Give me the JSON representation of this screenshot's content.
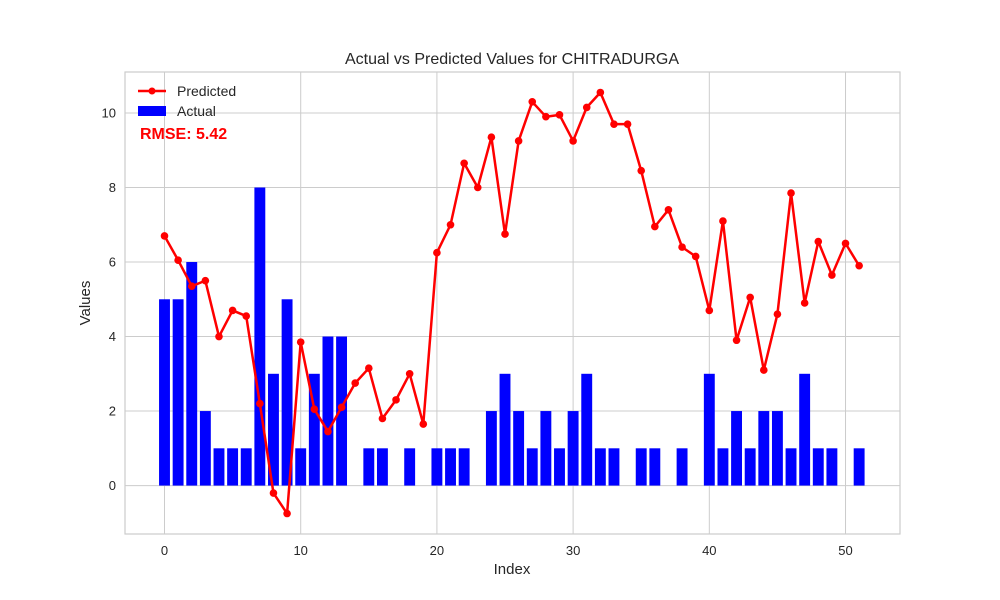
{
  "chart_data": {
    "type": "bar+line",
    "title": "Actual vs Predicted Values for CHITRADURGA",
    "xlabel": "Index",
    "ylabel": "Values",
    "xlim": [
      -2.9,
      54
    ],
    "ylim": [
      -1.3,
      11.1
    ],
    "xticks": [
      0,
      10,
      20,
      30,
      40,
      50
    ],
    "yticks": [
      0,
      2,
      4,
      6,
      8,
      10
    ],
    "grid": true,
    "legend_position": "top-left",
    "annotation": "RMSE: 5.42",
    "series": [
      {
        "name": "Predicted",
        "kind": "line",
        "color": "#ff0000",
        "values": [
          6.7,
          6.05,
          5.35,
          5.5,
          4.0,
          4.7,
          4.55,
          2.2,
          -0.2,
          -0.75,
          3.85,
          2.05,
          1.45,
          2.1,
          2.75,
          3.15,
          1.8,
          2.3,
          3.0,
          1.65,
          6.25,
          7.0,
          8.65,
          8.0,
          9.35,
          6.75,
          9.25,
          10.3,
          9.9,
          9.95,
          9.25,
          10.15,
          10.55,
          9.7,
          9.7,
          8.45,
          6.95,
          7.4,
          6.4,
          6.15,
          4.7,
          7.1,
          3.9,
          5.05,
          3.1,
          4.6,
          7.85,
          4.9,
          6.55,
          5.65,
          6.5,
          5.9
        ]
      },
      {
        "name": "Actual",
        "kind": "bar",
        "color": "#0000ff",
        "values": [
          5,
          5,
          6,
          2,
          1,
          1,
          1,
          8,
          3,
          5,
          1,
          3,
          4,
          4,
          0,
          1,
          1,
          0,
          1,
          0,
          1,
          1,
          1,
          0,
          2,
          3,
          2,
          1,
          2,
          1,
          2,
          3,
          1,
          1,
          0,
          1,
          1,
          0,
          1,
          0,
          3,
          1,
          2,
          1,
          2,
          2,
          1,
          3,
          1,
          1,
          0,
          1
        ]
      }
    ]
  }
}
